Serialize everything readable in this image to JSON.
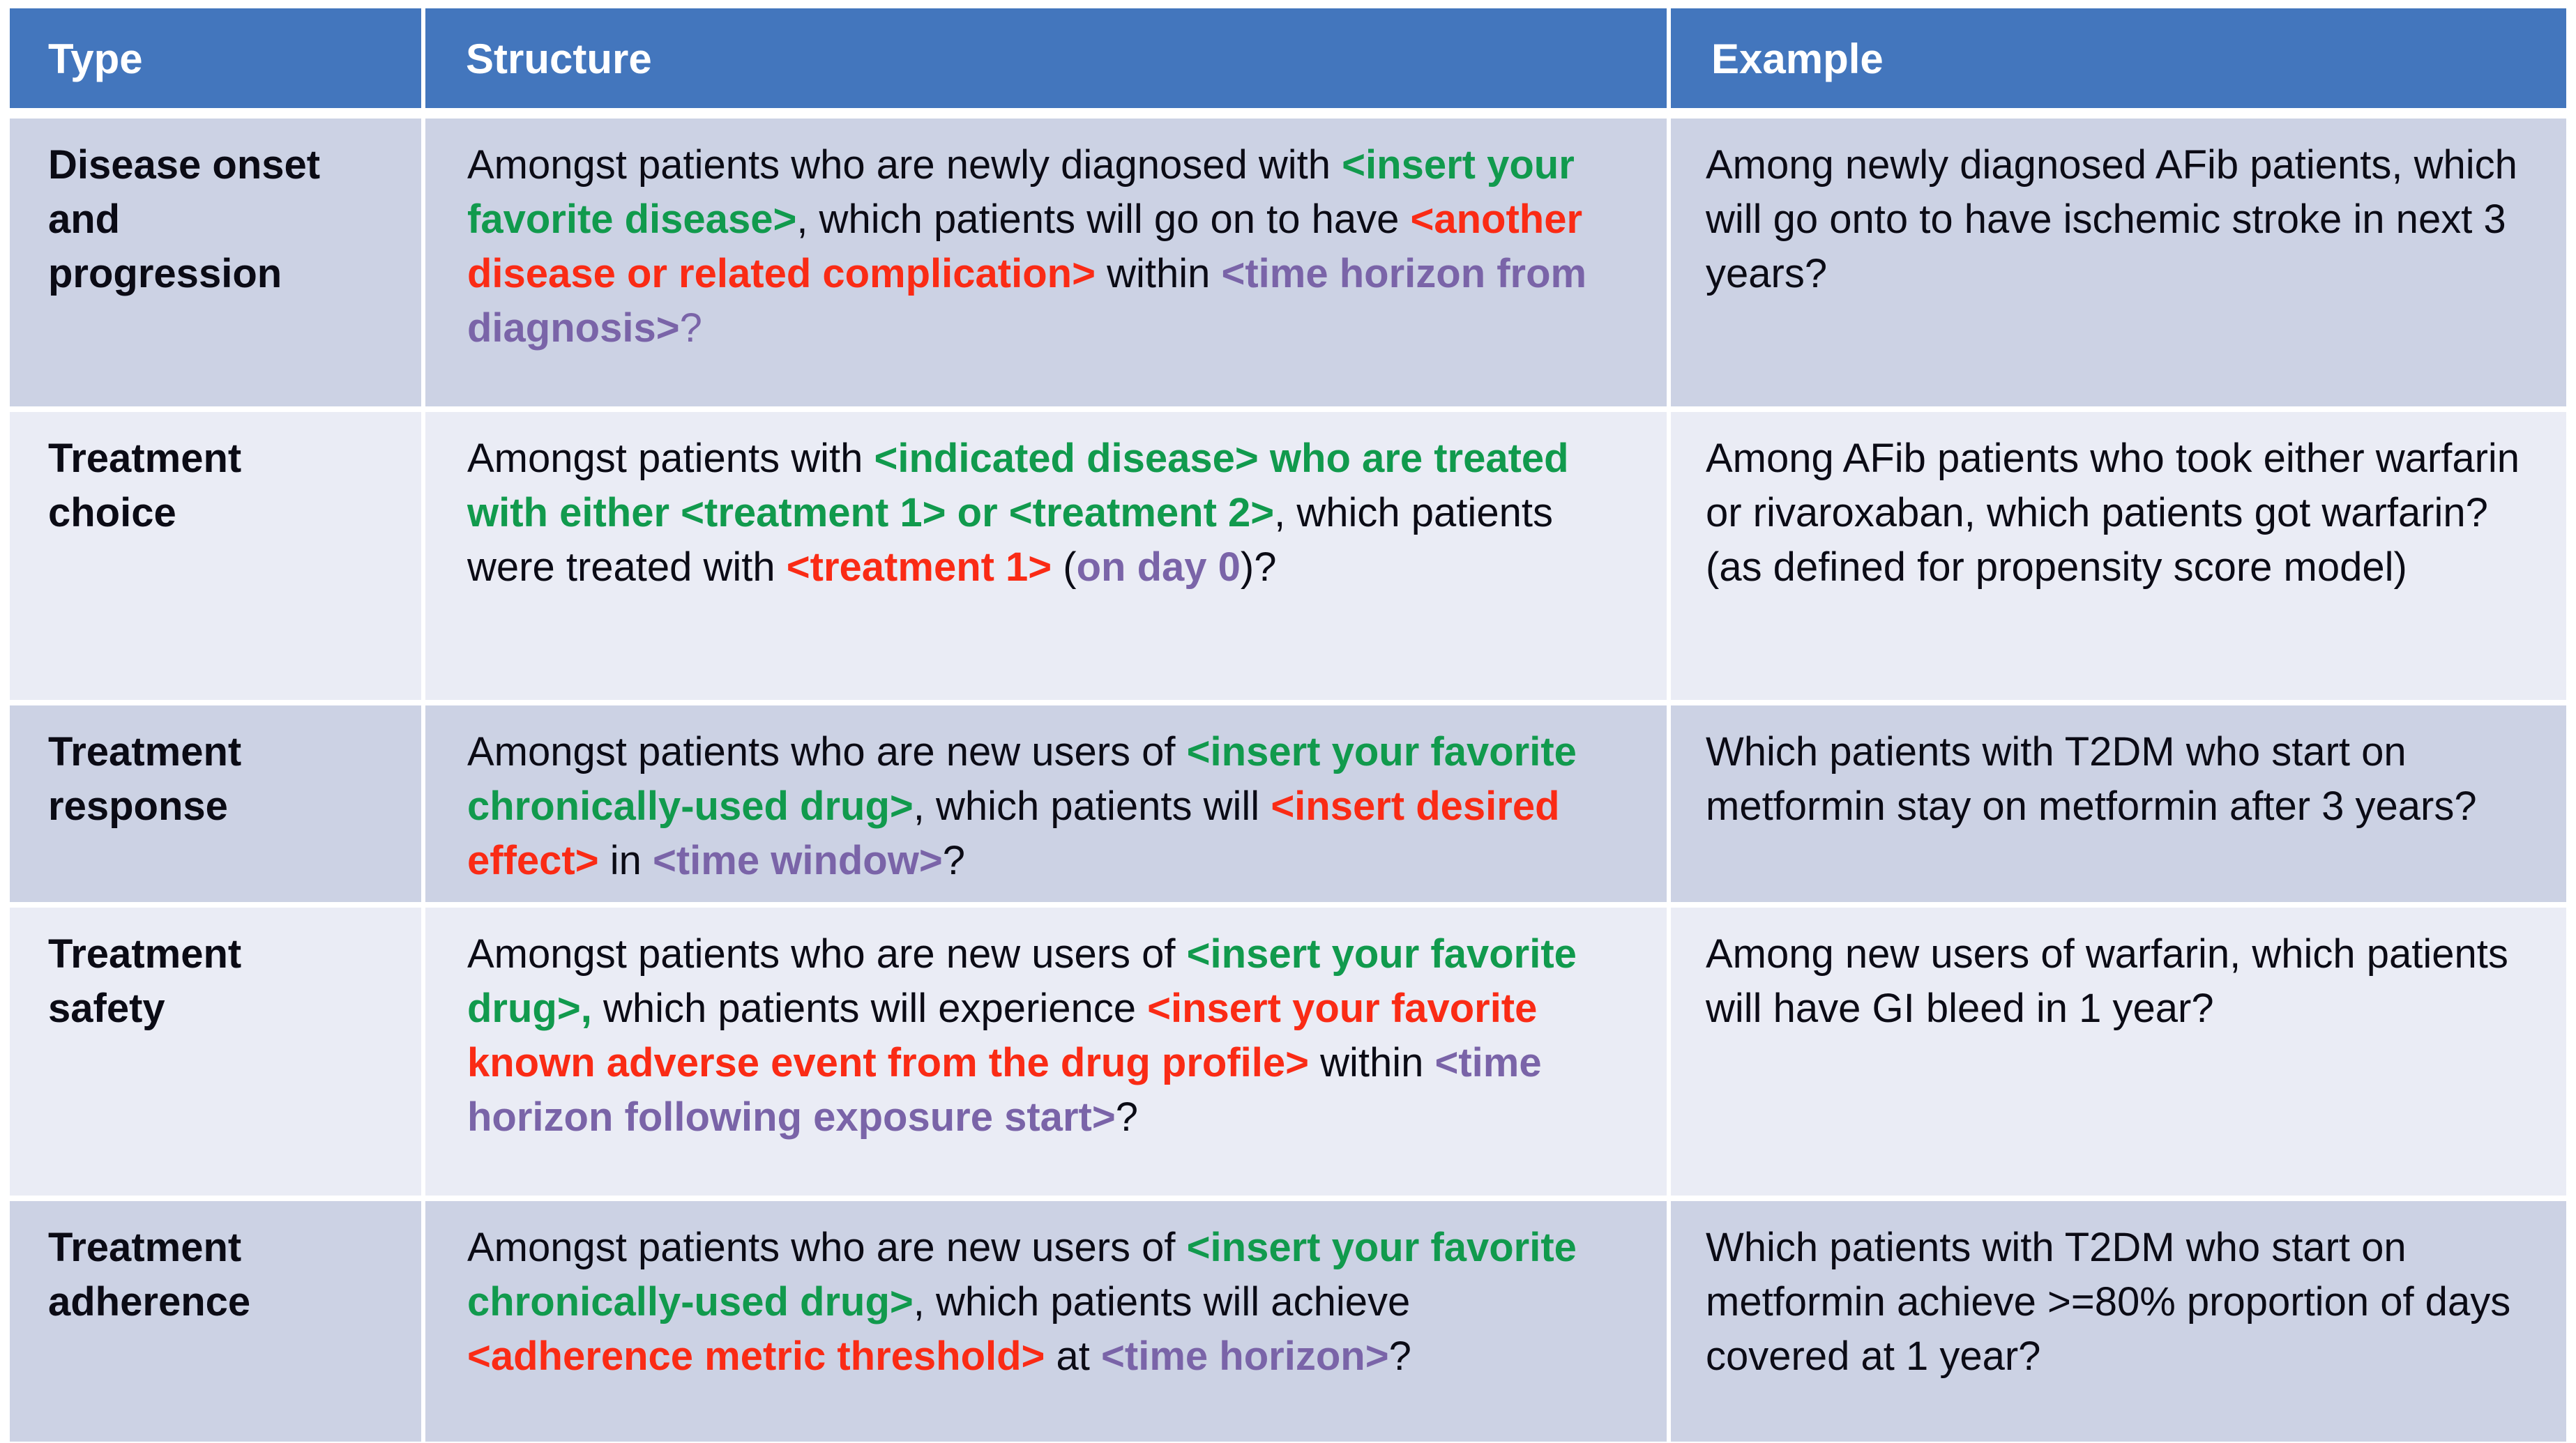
{
  "colors": {
    "header_bg": "#4376bd",
    "header_text": "#ffffff",
    "row_dark": "#ccd2e4",
    "row_light": "#eaecf5",
    "body_text": "#0b0b15",
    "placeholder_green": "#119a4d",
    "placeholder_red": "#fa2b15",
    "placeholder_purple": "#7a64a8"
  },
  "header": {
    "columns": [
      "Type",
      "Structure",
      "Example"
    ]
  },
  "rows": [
    {
      "type": "Disease onset and progression",
      "structure": [
        {
          "t": "Amongst patients who are newly diagnosed with ",
          "c": "k",
          "b": false
        },
        {
          "t": "<insert your favorite disease>",
          "c": "g",
          "b": true
        },
        {
          "t": ", which patients will go on to have ",
          "c": "k",
          "b": false
        },
        {
          "t": "<another disease or related complication>",
          "c": "r",
          "b": true
        },
        {
          "t": " within ",
          "c": "k",
          "b": false
        },
        {
          "t": "<time horizon from diagnosis>",
          "c": "p",
          "b": true
        },
        {
          "t": "?",
          "c": "p",
          "b": false
        }
      ],
      "example": "Among newly diagnosed AFib patients, which will go onto to have ischemic stroke in next 3 years?"
    },
    {
      "type": "Treatment choice",
      "structure": [
        {
          "t": "Amongst patients with ",
          "c": "k",
          "b": false
        },
        {
          "t": "<indicated disease> who are treated with either <treatment 1> or <treatment 2>",
          "c": "g",
          "b": true
        },
        {
          "t": ", which patients were treated with ",
          "c": "k",
          "b": false
        },
        {
          "t": "<treatment 1>",
          "c": "r",
          "b": true
        },
        {
          "t": " (",
          "c": "k",
          "b": false
        },
        {
          "t": "on day 0",
          "c": "p",
          "b": true
        },
        {
          "t": ")?",
          "c": "k",
          "b": false
        }
      ],
      "example": "Among AFib patients who took either warfarin or rivaroxaban, which patients got warfarin?   (as defined for propensity score model)"
    },
    {
      "type": "Treatment response",
      "structure": [
        {
          "t": "Amongst patients who are new users of ",
          "c": "k",
          "b": false
        },
        {
          "t": "<insert your favorite chronically-used drug>",
          "c": "g",
          "b": true
        },
        {
          "t": ", which patients will ",
          "c": "k",
          "b": false
        },
        {
          "t": "<insert desired effect>",
          "c": "r",
          "b": true
        },
        {
          "t": " in ",
          "c": "k",
          "b": false
        },
        {
          "t": "<time window>",
          "c": "p",
          "b": true
        },
        {
          "t": "?",
          "c": "k",
          "b": false
        }
      ],
      "example": "Which patients with T2DM who start on metformin stay on metformin after 3 years?"
    },
    {
      "type": "Treatment safety",
      "structure": [
        {
          "t": "Amongst patients who are new users of ",
          "c": "k",
          "b": false
        },
        {
          "t": "<insert your favorite drug>,",
          "c": "g",
          "b": true
        },
        {
          "t": " which patients will experience ",
          "c": "k",
          "b": false
        },
        {
          "t": "<insert your favorite known adverse event from the drug profile>",
          "c": "r",
          "b": true
        },
        {
          "t": " within ",
          "c": "k",
          "b": false
        },
        {
          "t": "<time horizon following exposure start>",
          "c": "p",
          "b": true
        },
        {
          "t": "?",
          "c": "k",
          "b": false
        }
      ],
      "example": "Among new users of warfarin, which patients will have GI bleed in 1 year?"
    },
    {
      "type": "Treatment adherence",
      "structure": [
        {
          "t": "Amongst patients who are new users of ",
          "c": "k",
          "b": false
        },
        {
          "t": "<insert your favorite chronically-used drug>",
          "c": "g",
          "b": true
        },
        {
          "t": ", which patients will achieve ",
          "c": "k",
          "b": false
        },
        {
          "t": "<adherence metric threshold>",
          "c": "r",
          "b": true
        },
        {
          "t": " at ",
          "c": "k",
          "b": false
        },
        {
          "t": "<time horizon>",
          "c": "p",
          "b": true
        },
        {
          "t": "?",
          "c": "k",
          "b": false
        }
      ],
      "example": "Which patients with T2DM who start on metformin achieve >=80% proportion of days covered at 1 year?"
    }
  ]
}
